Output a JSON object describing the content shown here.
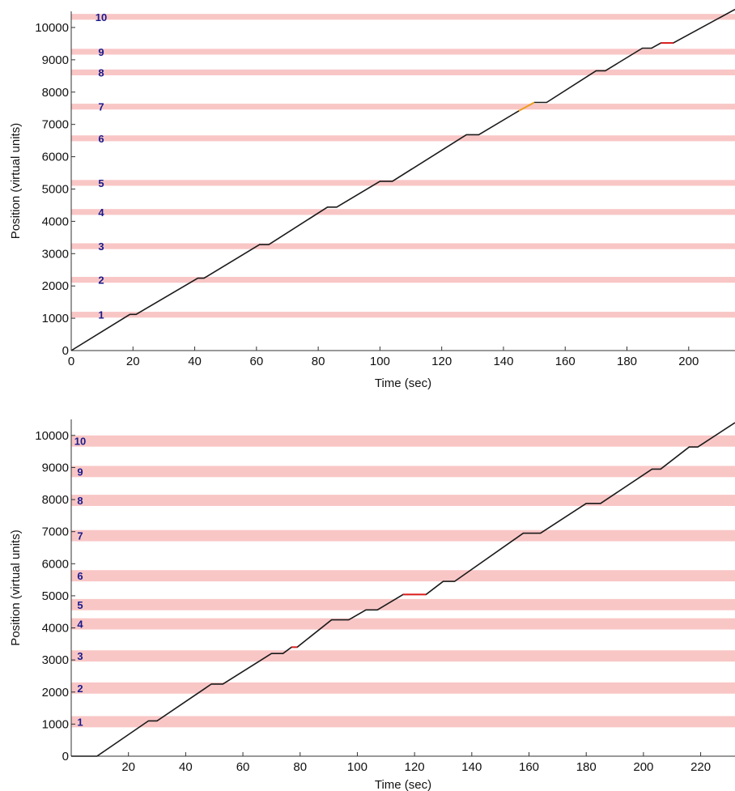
{
  "chart_data": [
    {
      "type": "line",
      "xlabel": "Time (sec)",
      "ylabel": "Position (virtual units)",
      "xlim": [
        0,
        215
      ],
      "ylim": [
        0,
        10500
      ],
      "xticks": [
        0,
        20,
        40,
        60,
        80,
        100,
        120,
        140,
        160,
        180,
        200
      ],
      "yticks": [
        0,
        1000,
        2000,
        3000,
        4000,
        5000,
        6000,
        7000,
        8000,
        9000,
        10000
      ],
      "zones": [
        {
          "label": "1",
          "y0": 1020,
          "y1": 1200
        },
        {
          "label": "2",
          "y0": 2100,
          "y1": 2280
        },
        {
          "label": "3",
          "y0": 3140,
          "y1": 3320
        },
        {
          "label": "4",
          "y0": 4200,
          "y1": 4380
        },
        {
          "label": "5",
          "y0": 5100,
          "y1": 5280
        },
        {
          "label": "6",
          "y0": 6480,
          "y1": 6660
        },
        {
          "label": "7",
          "y0": 7460,
          "y1": 7640
        },
        {
          "label": "8",
          "y0": 8520,
          "y1": 8700
        },
        {
          "label": "9",
          "y0": 9160,
          "y1": 9340
        },
        {
          "label": "10",
          "y0": 10240,
          "y1": 10420
        }
      ],
      "series": [
        {
          "color": "#1a1a1a",
          "x": [
            0,
            19,
            21,
            41,
            43,
            61,
            64,
            83,
            86,
            100,
            104,
            128,
            132,
            145,
            150,
            152,
            154,
            170,
            173,
            185,
            188,
            191,
            195,
            215
          ],
          "y": [
            0,
            1120,
            1120,
            2240,
            2240,
            3280,
            3280,
            4440,
            4440,
            5240,
            5240,
            6680,
            6680,
            7420,
            7680,
            7680,
            7680,
            8660,
            8660,
            9360,
            9360,
            9520,
            9520,
            10560
          ]
        }
      ],
      "highlights": [
        {
          "color": "#f0a020",
          "x": [
            145,
            150
          ],
          "y": [
            7420,
            7680
          ]
        },
        {
          "color": "#e02020",
          "x": [
            191,
            195
          ],
          "y": [
            9520,
            9520
          ]
        }
      ]
    },
    {
      "type": "line",
      "xlabel": "Time (sec)",
      "ylabel": "Position (virtual units)",
      "xlim": [
        0,
        232
      ],
      "ylim": [
        0,
        10500
      ],
      "xticks": [
        20,
        40,
        60,
        80,
        100,
        120,
        140,
        160,
        180,
        200,
        220
      ],
      "yticks": [
        0,
        1000,
        2000,
        3000,
        4000,
        5000,
        6000,
        7000,
        8000,
        9000,
        10000
      ],
      "zones": [
        {
          "label": "1",
          "y0": 900,
          "y1": 1250
        },
        {
          "label": "2",
          "y0": 1950,
          "y1": 2300
        },
        {
          "label": "3",
          "y0": 2950,
          "y1": 3300
        },
        {
          "label": "4",
          "y0": 3950,
          "y1": 4300
        },
        {
          "label": "5",
          "y0": 4550,
          "y1": 4900
        },
        {
          "label": "6",
          "y0": 5450,
          "y1": 5800
        },
        {
          "label": "7",
          "y0": 6700,
          "y1": 7050
        },
        {
          "label": "8",
          "y0": 7800,
          "y1": 8150
        },
        {
          "label": "9",
          "y0": 8700,
          "y1": 9050
        },
        {
          "label": "10",
          "y0": 9650,
          "y1": 10000
        }
      ],
      "series": [
        {
          "color": "#1a1a1a",
          "x": [
            0,
            9,
            27,
            30,
            49,
            53,
            70,
            74,
            77,
            79,
            91,
            97,
            103,
            107,
            116,
            124,
            130,
            134,
            158,
            164,
            180,
            185,
            203,
            206,
            216,
            219,
            232
          ],
          "y": [
            0,
            0,
            1100,
            1100,
            2250,
            2250,
            3200,
            3200,
            3400,
            3400,
            4250,
            4250,
            4560,
            4560,
            5040,
            5040,
            5450,
            5450,
            6950,
            6950,
            7880,
            7880,
            8950,
            8950,
            9640,
            9640,
            10400
          ]
        }
      ],
      "highlights": [
        {
          "color": "#e02020",
          "x": [
            77,
            79
          ],
          "y": [
            3400,
            3400
          ]
        },
        {
          "color": "#e02020",
          "x": [
            116,
            124
          ],
          "y": [
            5040,
            5040
          ]
        }
      ]
    }
  ]
}
